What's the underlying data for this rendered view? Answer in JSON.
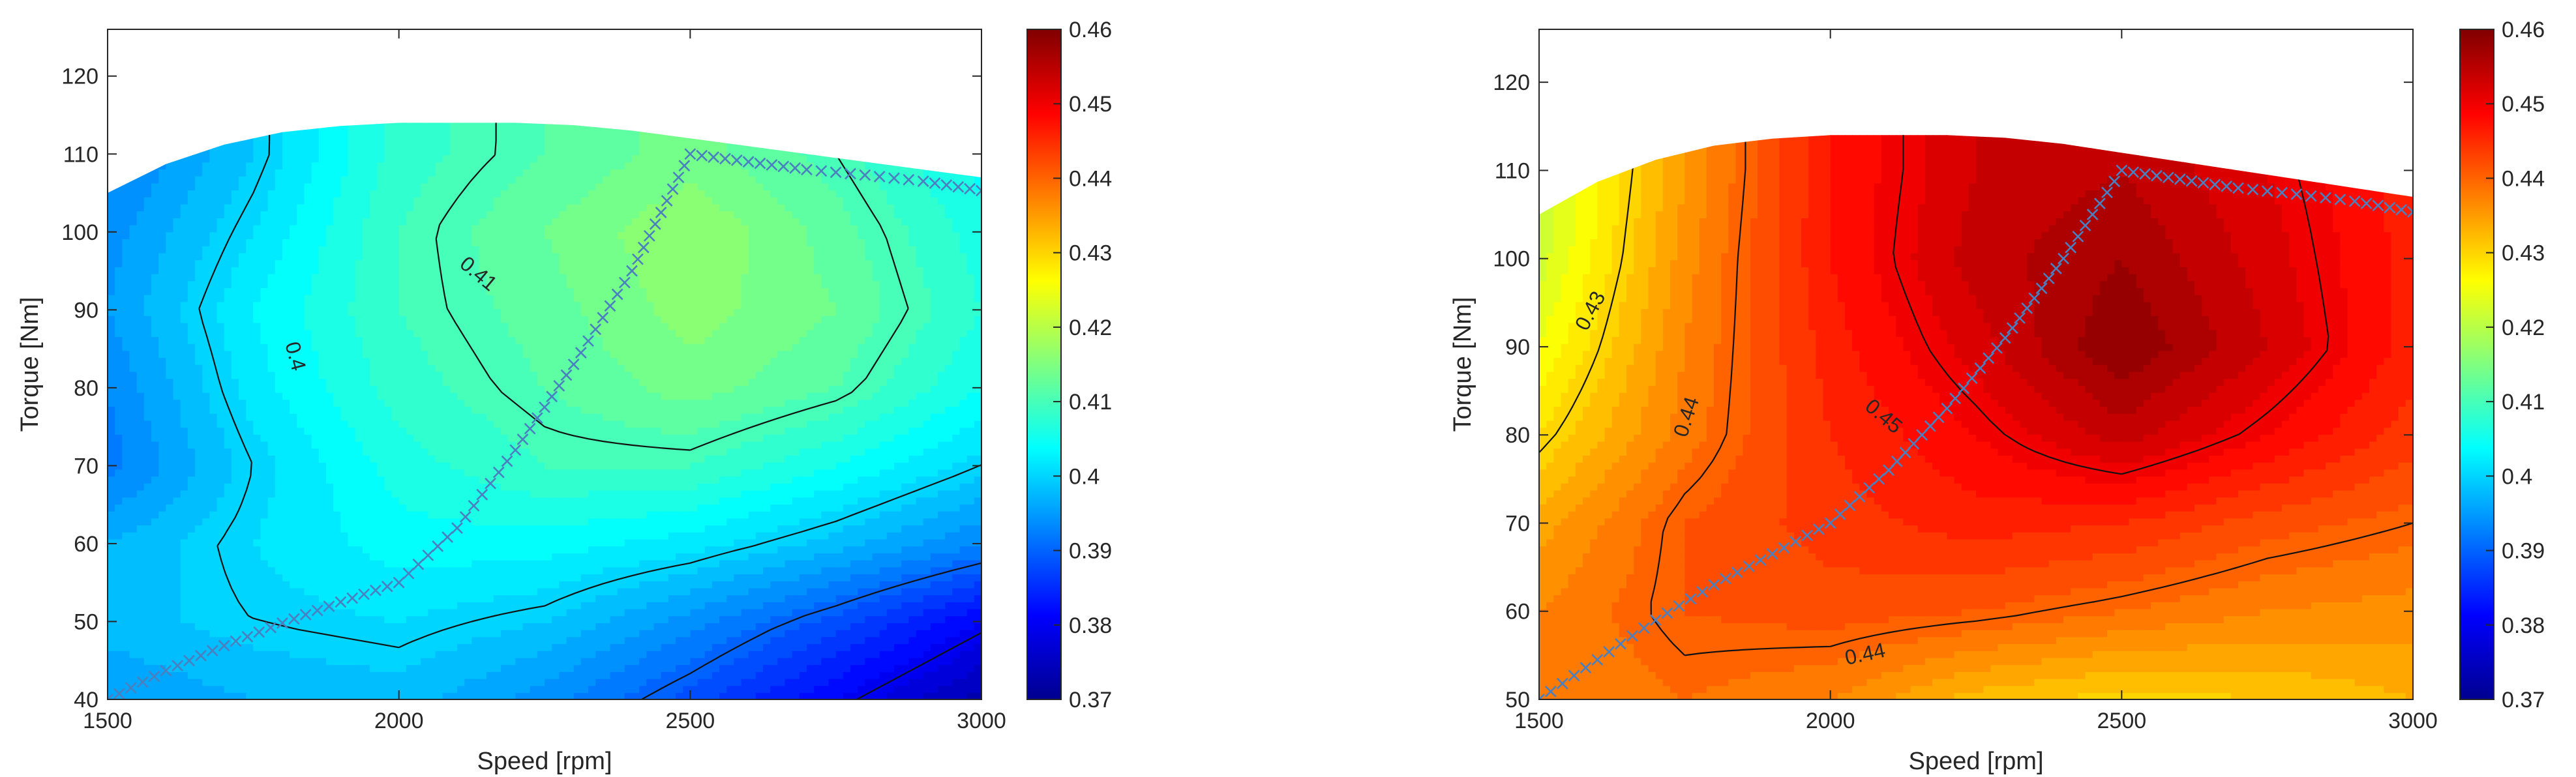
{
  "chart_data": [
    {
      "type": "contour",
      "xlabel": "Speed [rpm]",
      "ylabel": "Torque [Nm]",
      "xlim": [
        1500,
        3000
      ],
      "ylim": [
        40,
        126
      ],
      "xticks": [
        1500,
        2000,
        2500,
        3000
      ],
      "yticks": [
        40,
        50,
        60,
        70,
        80,
        90,
        100,
        110,
        120
      ],
      "colorbar": {
        "min": 0.37,
        "max": 0.46,
        "ticks": [
          "0.37",
          "0.38",
          "0.39",
          "0.4",
          "0.41",
          "0.42",
          "0.43",
          "0.44",
          "0.45",
          "0.46"
        ]
      },
      "colormap": "jet",
      "x": [
        1500,
        1750,
        2000,
        2250,
        2500,
        2750,
        3000
      ],
      "y": [
        40,
        50,
        60,
        70,
        80,
        90,
        100,
        110
      ],
      "z": [
        [
          0.395,
          0.397,
          0.398,
          0.394,
          0.388,
          0.381,
          0.374
        ],
        [
          0.398,
          0.4,
          0.401,
          0.399,
          0.394,
          0.388,
          0.381
        ],
        [
          0.397,
          0.401,
          0.404,
          0.404,
          0.402,
          0.398,
          0.393
        ],
        [
          0.392,
          0.4,
          0.406,
          0.409,
          0.409,
          0.405,
          0.4
        ],
        [
          0.393,
          0.402,
          0.408,
          0.411,
          0.414,
          0.411,
          0.405
        ],
        [
          0.395,
          0.403,
          0.409,
          0.412,
          0.416,
          0.413,
          0.407
        ],
        [
          0.394,
          0.401,
          0.409,
          0.413,
          0.417,
          0.412,
          0.406
        ],
        [
          0.392,
          0.399,
          0.408,
          0.411,
          0.414,
          0.41,
          0.404
        ]
      ],
      "boundary": {
        "x": [
          1500,
          1600,
          1700,
          1800,
          1900,
          2000,
          2100,
          2200,
          2300,
          2400,
          2500,
          2600,
          2700,
          2800,
          2900,
          3000
        ],
        "y": [
          105,
          108.7,
          111.2,
          112.8,
          113.6,
          114,
          114,
          114,
          113.7,
          113,
          112,
          111,
          110,
          109,
          108,
          107
        ]
      },
      "contour_labels": [
        {
          "text": "0.4",
          "x": 1820,
          "y": 84,
          "angle": 75
        },
        {
          "text": "0.41",
          "x": 2135,
          "y": 94.5,
          "angle": 40
        }
      ],
      "operating_line": {
        "x": [
          1500,
          1600,
          1700,
          1800,
          1900,
          2000,
          2100,
          2200,
          2300,
          2400,
          2500,
          2600,
          2700,
          2800,
          2900,
          3000
        ],
        "y": [
          40,
          43.7,
          46.9,
          49.8,
          52.5,
          55,
          62,
          72,
          83,
          95,
          110,
          109,
          108,
          107.3,
          106.5,
          105.3
        ]
      }
    },
    {
      "type": "contour",
      "xlabel": "Speed [rpm]",
      "ylabel": "Torque [Nm]",
      "xlim": [
        1500,
        3000
      ],
      "ylim": [
        50,
        126
      ],
      "xticks": [
        1500,
        2000,
        2500,
        3000
      ],
      "yticks": [
        50,
        60,
        70,
        80,
        90,
        100,
        110,
        120
      ],
      "colorbar": {
        "min": 0.37,
        "max": 0.46,
        "ticks": [
          "0.37",
          "0.38",
          "0.39",
          "0.4",
          "0.41",
          "0.42",
          "0.43",
          "0.44",
          "0.45",
          "0.46"
        ]
      },
      "colormap": "jet",
      "x": [
        1500,
        1750,
        2000,
        2250,
        2500,
        2750,
        3000
      ],
      "y": [
        50,
        60,
        70,
        80,
        90,
        100,
        110
      ],
      "z": [
        [
          0.437,
          0.439,
          0.437,
          0.432,
          0.43,
          0.431,
          0.433
        ],
        [
          0.437,
          0.441,
          0.442,
          0.441,
          0.439,
          0.437,
          0.436
        ],
        [
          0.434,
          0.441,
          0.444,
          0.446,
          0.445,
          0.442,
          0.44
        ],
        [
          0.429,
          0.438,
          0.445,
          0.449,
          0.454,
          0.449,
          0.444
        ],
        [
          0.425,
          0.437,
          0.446,
          0.452,
          0.459,
          0.453,
          0.446
        ],
        [
          0.422,
          0.436,
          0.447,
          0.454,
          0.457,
          0.452,
          0.446
        ],
        [
          0.421,
          0.435,
          0.447,
          0.453,
          0.455,
          0.451,
          0.446
        ]
      ],
      "boundary": {
        "x": [
          1500,
          1600,
          1700,
          1800,
          1900,
          2000,
          2100,
          2200,
          2300,
          2400,
          2500,
          2600,
          2700,
          2800,
          2900,
          3000
        ],
        "y": [
          105,
          108.7,
          111.2,
          112.8,
          113.6,
          114,
          114,
          114,
          113.7,
          113,
          112,
          111,
          110,
          109,
          108,
          107
        ]
      },
      "contour_labels": [
        {
          "text": "0.43",
          "x": 1590,
          "y": 94,
          "angle": -62
        },
        {
          "text": "0.44",
          "x": 1755,
          "y": 82,
          "angle": -72
        },
        {
          "text": "0.45",
          "x": 2090,
          "y": 82,
          "angle": 40
        },
        {
          "text": "0.44",
          "x": 2060,
          "y": 55,
          "angle": -12
        }
      ],
      "operating_line": {
        "x": [
          1500,
          1600,
          1700,
          1800,
          1900,
          2000,
          2100,
          2200,
          2300,
          2400,
          2500,
          2600,
          2700,
          2800,
          2900,
          3000
        ],
        "y": [
          50,
          54.5,
          59,
          63,
          66.5,
          70,
          76,
          83,
          91,
          100,
          110,
          109,
          108,
          107.3,
          106.5,
          105.3
        ]
      }
    }
  ]
}
